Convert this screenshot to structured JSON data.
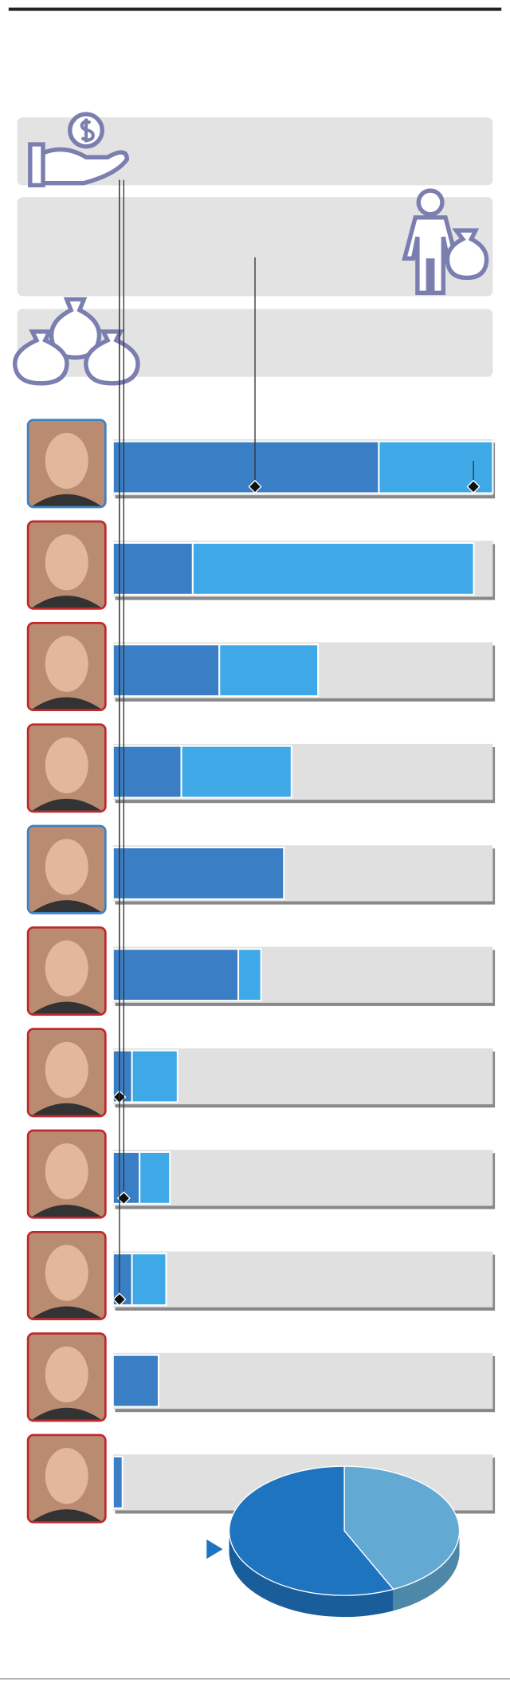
{
  "chart_data": [
    {
      "type": "bar",
      "orientation": "horizontal",
      "stacked": true,
      "categories": [
        null,
        null,
        null,
        null,
        null,
        null,
        null,
        null,
        null,
        null,
        null
      ],
      "xlim": [
        0,
        100
      ],
      "track_color": "#e0e0e0",
      "series": [
        {
          "color": "#3a7fc6",
          "values": [
            70,
            21,
            28,
            18,
            45,
            33,
            5,
            7,
            5,
            12,
            2.5
          ]
        },
        {
          "color": "#3fa9e8",
          "values": [
            30,
            74,
            26,
            29,
            0,
            6,
            12,
            8,
            9,
            0,
            0
          ]
        }
      ]
    },
    {
      "type": "pie",
      "values": [
        57,
        43
      ],
      "colors": [
        "#1f74c0",
        "#62aad3"
      ]
    }
  ]
}
